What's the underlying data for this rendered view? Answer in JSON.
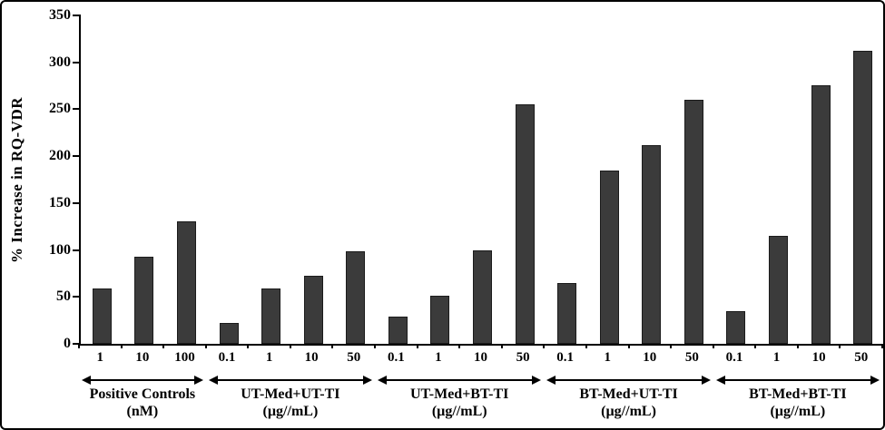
{
  "chart_data": {
    "type": "bar",
    "title": "",
    "ylabel": "% Increase in RQ-VDR",
    "xlabel": "",
    "ylim": [
      0,
      350
    ],
    "ytick_step": 50,
    "yticks": [
      0,
      50,
      100,
      150,
      200,
      250,
      300,
      350
    ],
    "grid": false,
    "legend": "none",
    "bar_color": "#3b3b3b",
    "bar_border_color": "#1b1b1b",
    "axis_color": "#000000",
    "groups": [
      {
        "name": "Positive Controls",
        "unit": "(nM)",
        "categories": [
          "1",
          "10",
          "100"
        ],
        "values": [
          59,
          93,
          131
        ]
      },
      {
        "name": "UT-Med+UT-TI",
        "unit": "(µg//mL)",
        "categories": [
          "0.1",
          "1",
          "10",
          "50"
        ],
        "values": [
          22,
          59,
          73,
          99
        ]
      },
      {
        "name": "UT-Med+BT-TI",
        "unit": "(µg//mL)",
        "categories": [
          "0.1",
          "1",
          "10",
          "50"
        ],
        "values": [
          29,
          51,
          100,
          255
        ]
      },
      {
        "name": "BT-Med+UT-TI",
        "unit": "(µg//mL)",
        "categories": [
          "0.1",
          "1",
          "10",
          "50"
        ],
        "values": [
          65,
          185,
          212,
          260
        ]
      },
      {
        "name": "BT-Med+BT-TI",
        "unit": "(µg//mL)",
        "categories": [
          "0.1",
          "1",
          "10",
          "50"
        ],
        "values": [
          35,
          115,
          276,
          312
        ]
      }
    ]
  }
}
